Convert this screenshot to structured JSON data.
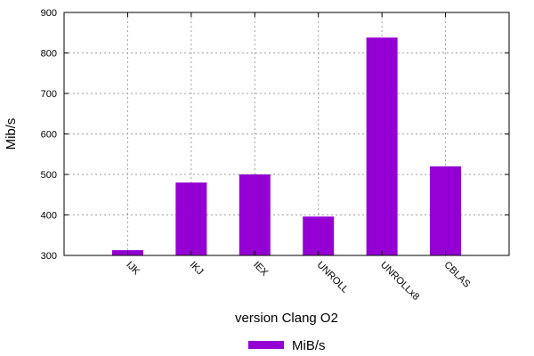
{
  "chart_data": {
    "type": "bar",
    "categories": [
      "IJK",
      "IKJ",
      "IEX",
      "UNROLL",
      "UNROLLx8",
      "CBLAS"
    ],
    "series": [
      {
        "name": "MiB/s",
        "values": [
          313,
          480,
          500,
          396,
          838,
          520
        ],
        "color": "#9400d3"
      }
    ],
    "xlabel": "version Clang O2",
    "ylabel": "Mib/s",
    "ylim": [
      300,
      900
    ],
    "yticks": [
      300,
      400,
      500,
      600,
      700,
      800,
      900
    ],
    "grid": true,
    "legend_position": "bottom-center"
  }
}
